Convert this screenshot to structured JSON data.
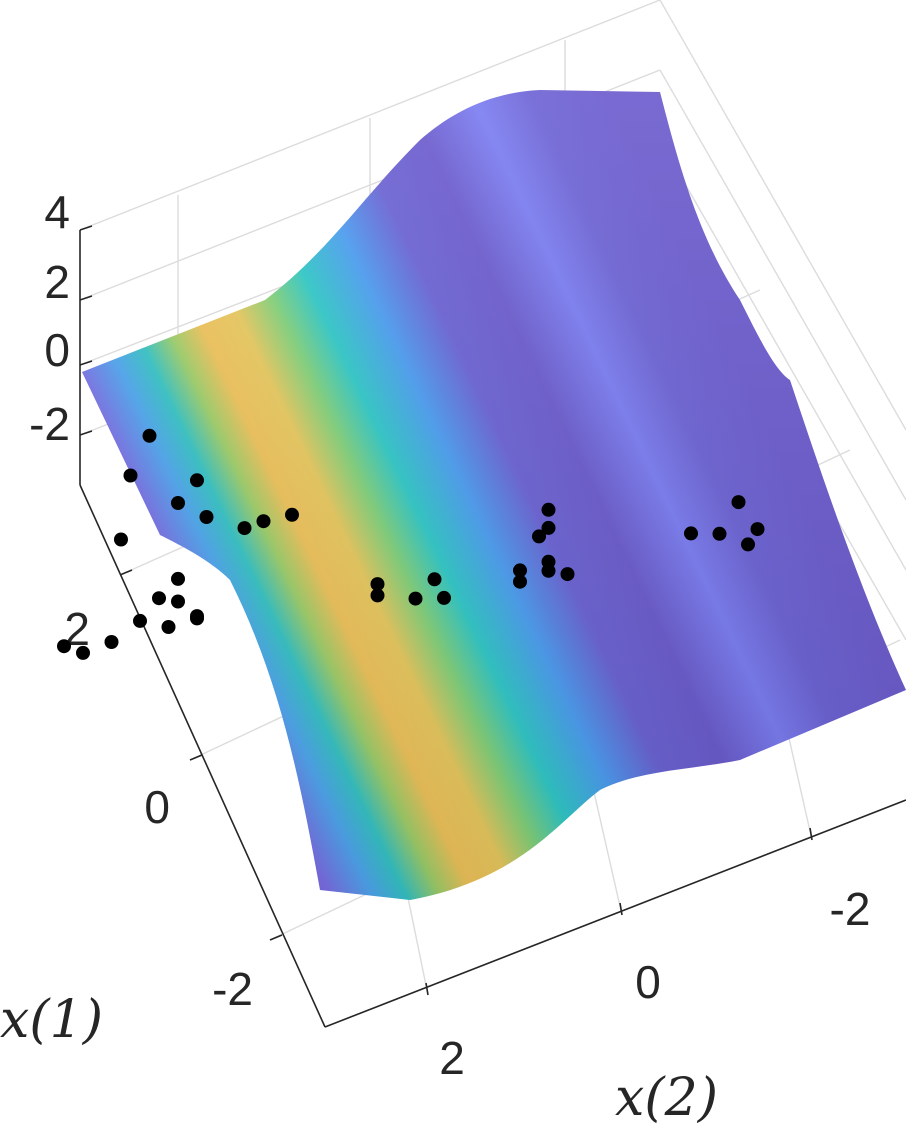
{
  "chart_data": {
    "type": "surface3d",
    "zlabel": "",
    "xlabel": "x(1)",
    "ylabel": "x(2)",
    "z_ticks": [
      "4",
      "2",
      "0",
      "-2"
    ],
    "x1_ticks": [
      "2",
      "0",
      "-2"
    ],
    "x2_ticks": [
      "2",
      "0",
      "-2"
    ],
    "z_range": [
      -3,
      4
    ],
    "x1_range": [
      -3,
      3
    ],
    "x2_range": [
      -3,
      3
    ],
    "colormap": [
      "#6a5acd",
      "#7b7cf0",
      "#5aa7f5",
      "#33c3c8",
      "#7fcf7a",
      "#ecc35a"
    ],
    "grid": true,
    "surface_description_values": {
      "peak_z": 4,
      "trough_z": -2.5
    },
    "points": [
      {
        "x1": 2.2,
        "x2": 2.6,
        "z": -2.0
      },
      {
        "x1": 2.1,
        "x2": 2.5,
        "z": -2.2
      },
      {
        "x1": 2.0,
        "x2": 2.3,
        "z": -2.0
      },
      {
        "x1": 1.9,
        "x2": 2.1,
        "z": -1.5
      },
      {
        "x1": 1.8,
        "x2": 1.9,
        "z": -1.8
      },
      {
        "x1": 1.7,
        "x2": 1.7,
        "z": -1.6
      },
      {
        "x1": 1.8,
        "x2": 1.6,
        "z": -1.9
      },
      {
        "x1": 2.3,
        "x2": 1.9,
        "z": 0.2
      },
      {
        "x1": 2.5,
        "x2": 1.6,
        "z": 1.5
      },
      {
        "x1": 2.6,
        "x2": 1.3,
        "z": 2.2
      },
      {
        "x1": 2.2,
        "x2": 1.4,
        "z": 0.8
      },
      {
        "x1": 2.0,
        "x2": 1.3,
        "z": 0.5
      },
      {
        "x1": 1.7,
        "x2": 1.2,
        "z": 0.4
      },
      {
        "x1": 1.6,
        "x2": 1.1,
        "z": 0.6
      },
      {
        "x1": 1.4,
        "x2": 1.0,
        "z": 0.9
      },
      {
        "x1": 2.3,
        "x2": 1.1,
        "z": 1.0
      },
      {
        "x1": 2.1,
        "x2": 1.5,
        "z": -1.2
      },
      {
        "x1": 2.0,
        "x2": 1.8,
        "z": -1.3
      },
      {
        "x1": 1.9,
        "x2": 1.7,
        "z": -1.4
      },
      {
        "x1": 1.1,
        "x2": 0.4,
        "z": -1.5
      },
      {
        "x1": 1.0,
        "x2": 0.5,
        "z": -1.6
      },
      {
        "x1": 0.8,
        "x2": 0.3,
        "z": -1.7
      },
      {
        "x1": 0.7,
        "x2": 0.1,
        "z": -1.8
      },
      {
        "x1": 0.9,
        "x2": 0.0,
        "z": -1.6
      },
      {
        "x1": 0.6,
        "x2": -0.6,
        "z": -1.7
      },
      {
        "x1": 0.5,
        "x2": -0.5,
        "z": -1.8
      },
      {
        "x1": 0.4,
        "x2": -0.7,
        "z": -1.6
      },
      {
        "x1": 0.3,
        "x2": -0.8,
        "z": -1.7
      },
      {
        "x1": 0.6,
        "x2": -0.9,
        "z": -1.8
      },
      {
        "x1": 0.8,
        "x2": -1.0,
        "z": -1.4
      },
      {
        "x1": 0.9,
        "x2": -1.2,
        "z": -1.5
      },
      {
        "x1": 1.0,
        "x2": -1.3,
        "z": -1.2
      },
      {
        "x1": 0.2,
        "x2": -2.0,
        "z": -1.8
      },
      {
        "x1": 0.0,
        "x2": -2.1,
        "z": -1.7
      },
      {
        "x1": -0.2,
        "x2": -2.2,
        "z": -1.9
      },
      {
        "x1": -0.1,
        "x2": -2.4,
        "z": -1.8
      },
      {
        "x1": 0.3,
        "x2": -2.6,
        "z": -1.7
      }
    ]
  }
}
